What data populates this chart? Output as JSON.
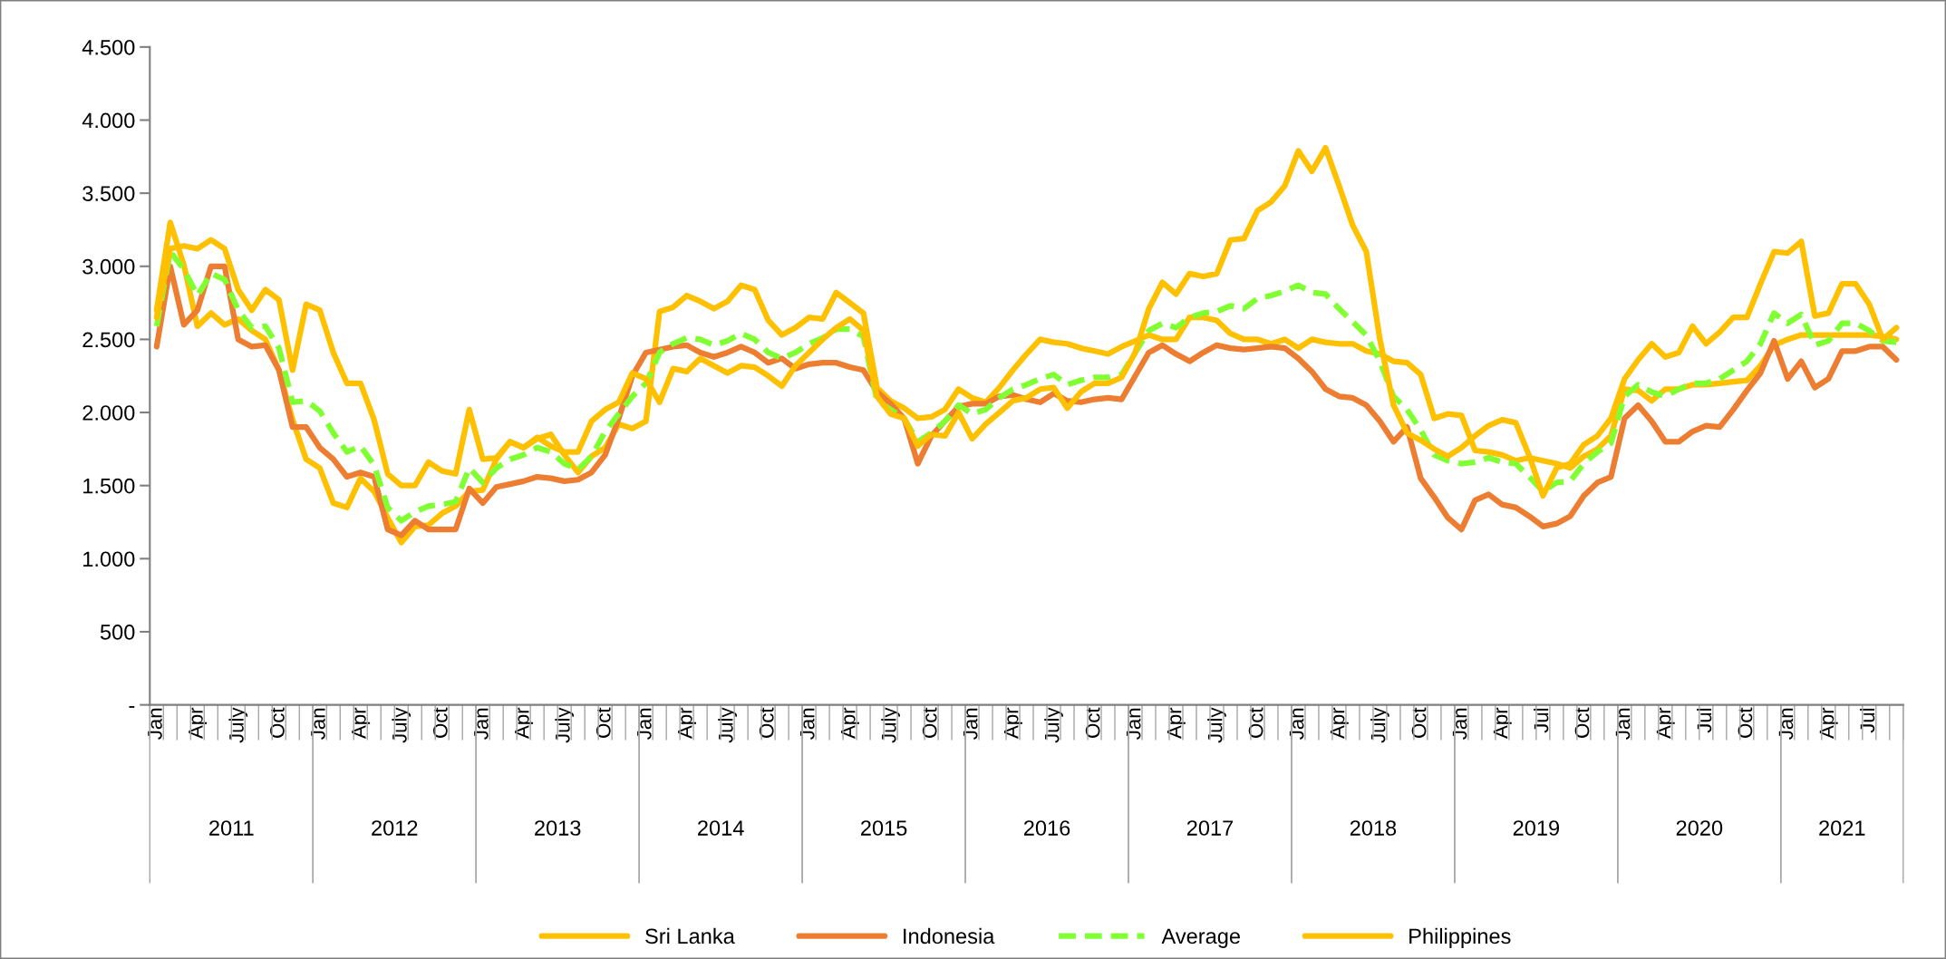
{
  "chart_data": {
    "type": "line",
    "categories": [
      "Jan",
      null,
      null,
      "Apr",
      null,
      null,
      "July",
      null,
      null,
      "Oct",
      null,
      null,
      "Jan",
      null,
      null,
      "Apr",
      null,
      null,
      "July",
      null,
      null,
      "Oct",
      null,
      null,
      "Jan",
      null,
      null,
      "Apr",
      null,
      null,
      "July",
      null,
      null,
      "Oct",
      null,
      null,
      "Jan",
      null,
      null,
      "Apr",
      null,
      null,
      "July",
      null,
      null,
      "Oct",
      null,
      null,
      "Jan",
      null,
      null,
      "Apr",
      null,
      null,
      "July",
      null,
      null,
      "Oct",
      null,
      null,
      "Jan",
      null,
      null,
      "Apr",
      null,
      null,
      "July",
      null,
      null,
      "Oct",
      null,
      null,
      "Jan",
      null,
      null,
      "Apr",
      null,
      null,
      "July",
      null,
      null,
      "Oct",
      null,
      null,
      "Jan",
      null,
      null,
      "Apr",
      null,
      null,
      "July",
      null,
      null,
      "Oct",
      null,
      null,
      "Jan",
      null,
      null,
      "Apr",
      null,
      null,
      "Jul",
      null,
      null,
      "Oct",
      null,
      null,
      "Jan",
      null,
      null,
      "Apr",
      null,
      null,
      "Jul",
      null,
      null,
      "Oct",
      null,
      null,
      "Jan",
      null,
      null,
      "Apr",
      null,
      null,
      "Jul",
      null,
      null
    ],
    "series": [
      {
        "name": "Sri Lanka",
        "color": "#ffc000",
        "line_style": "solid",
        "values": [
          2700,
          3300,
          3010,
          2590,
          2680,
          2600,
          2640,
          2560,
          2500,
          2290,
          1950,
          1680,
          1620,
          1380,
          1350,
          1550,
          1460,
          1280,
          1110,
          1220,
          1230,
          1310,
          1360,
          1460,
          1470,
          1680,
          1800,
          1760,
          1820,
          1850,
          1710,
          1590,
          1700,
          1760,
          1920,
          1890,
          1940,
          2690,
          2720,
          2800,
          2760,
          2710,
          2760,
          2870,
          2840,
          2630,
          2530,
          2580,
          2650,
          2640,
          2820,
          2750,
          2680,
          2170,
          2080,
          2030,
          1960,
          1970,
          2020,
          2160,
          2100,
          2070,
          2170,
          2290,
          2400,
          2500,
          2480,
          2470,
          2440,
          2420,
          2400,
          2450,
          2490,
          2530,
          2500,
          2500,
          2650,
          2650,
          2630,
          2540,
          2500,
          2500,
          2470,
          2500,
          2440,
          2500,
          2480,
          2470,
          2470,
          2420,
          2400,
          2350,
          2340,
          2260,
          1960,
          1990,
          1980,
          1740,
          1730,
          1710,
          1670,
          1690,
          1670,
          1650,
          1620,
          1700,
          1750,
          1840,
          2160,
          2150,
          2080,
          2160,
          2160,
          2190,
          2190,
          2200,
          2210,
          2220,
          2320,
          2460,
          2500,
          2530,
          2530,
          2530,
          2530,
          2530,
          2530,
          2520,
          2500
        ]
      },
      {
        "name": "Indonesia",
        "color": "#ed7d31",
        "line_style": "solid",
        "values": [
          2450,
          3000,
          2600,
          2700,
          3000,
          3000,
          2500,
          2450,
          2460,
          2290,
          1900,
          1900,
          1760,
          1680,
          1560,
          1590,
          1560,
          1200,
          1160,
          1260,
          1200,
          1200,
          1200,
          1480,
          1380,
          1490,
          1510,
          1530,
          1560,
          1550,
          1530,
          1540,
          1590,
          1710,
          1960,
          2250,
          2410,
          2430,
          2450,
          2460,
          2410,
          2380,
          2410,
          2450,
          2410,
          2340,
          2370,
          2300,
          2330,
          2340,
          2340,
          2310,
          2290,
          2140,
          2060,
          1960,
          1650,
          1840,
          1940,
          2040,
          2060,
          2060,
          2110,
          2120,
          2090,
          2070,
          2130,
          2080,
          2070,
          2090,
          2100,
          2090,
          2250,
          2410,
          2460,
          2400,
          2350,
          2410,
          2460,
          2440,
          2430,
          2440,
          2450,
          2440,
          2370,
          2280,
          2160,
          2110,
          2100,
          2050,
          1940,
          1800,
          1900,
          1550,
          1420,
          1280,
          1200,
          1400,
          1440,
          1370,
          1350,
          1290,
          1220,
          1240,
          1290,
          1430,
          1520,
          1560,
          1960,
          2050,
          1940,
          1800,
          1800,
          1870,
          1910,
          1900,
          2020,
          2150,
          2270,
          2490,
          2230,
          2350,
          2170,
          2230,
          2420,
          2420,
          2450,
          2450,
          2360
        ]
      },
      {
        "name": "Average",
        "color": "#80ff33",
        "line_style": "dashed",
        "values": [
          2590,
          3100,
          2980,
          2800,
          2950,
          2910,
          2700,
          2580,
          2590,
          2440,
          2070,
          2080,
          2010,
          1860,
          1730,
          1770,
          1640,
          1350,
          1260,
          1320,
          1360,
          1370,
          1390,
          1620,
          1520,
          1620,
          1680,
          1710,
          1760,
          1730,
          1650,
          1610,
          1700,
          1870,
          1990,
          2110,
          2200,
          2410,
          2470,
          2510,
          2500,
          2460,
          2490,
          2540,
          2500,
          2410,
          2370,
          2410,
          2470,
          2510,
          2570,
          2570,
          2520,
          2080,
          2020,
          1960,
          1800,
          1860,
          1940,
          2050,
          1990,
          2020,
          2100,
          2160,
          2190,
          2230,
          2260,
          2190,
          2220,
          2240,
          2240,
          2260,
          2410,
          2560,
          2610,
          2580,
          2650,
          2680,
          2690,
          2730,
          2710,
          2780,
          2800,
          2830,
          2870,
          2820,
          2810,
          2710,
          2620,
          2530,
          2350,
          2110,
          2020,
          1880,
          1710,
          1670,
          1650,
          1660,
          1690,
          1660,
          1650,
          1560,
          1460,
          1520,
          1530,
          1650,
          1730,
          1790,
          2110,
          2190,
          2140,
          2110,
          2160,
          2200,
          2200,
          2230,
          2290,
          2350,
          2470,
          2680,
          2610,
          2670,
          2460,
          2490,
          2610,
          2610,
          2560,
          2490,
          2480
        ]
      },
      {
        "name": "Philippines",
        "color": "#ffc000",
        "line_style": "solid",
        "values": [
          2650,
          3120,
          3140,
          3120,
          3180,
          3120,
          2840,
          2700,
          2840,
          2770,
          2290,
          2740,
          2700,
          2410,
          2200,
          2200,
          1950,
          1580,
          1500,
          1500,
          1660,
          1600,
          1580,
          2020,
          1680,
          1690,
          1800,
          1760,
          1830,
          1770,
          1730,
          1730,
          1940,
          2020,
          2070,
          2270,
          2230,
          2070,
          2300,
          2280,
          2370,
          2320,
          2270,
          2320,
          2310,
          2250,
          2180,
          2320,
          2410,
          2500,
          2580,
          2640,
          2560,
          2110,
          1990,
          1960,
          1770,
          1850,
          1840,
          2000,
          1820,
          1920,
          2000,
          2080,
          2100,
          2160,
          2170,
          2030,
          2140,
          2200,
          2200,
          2240,
          2410,
          2710,
          2890,
          2810,
          2950,
          2930,
          2950,
          3180,
          3190,
          3380,
          3440,
          3550,
          3790,
          3650,
          3810,
          3550,
          3280,
          3100,
          2500,
          2050,
          1860,
          1810,
          1750,
          1700,
          1760,
          1840,
          1910,
          1950,
          1930,
          1700,
          1430,
          1620,
          1650,
          1780,
          1840,
          1960,
          2230,
          2360,
          2470,
          2380,
          2410,
          2590,
          2470,
          2550,
          2650,
          2650,
          2880,
          3100,
          3090,
          3170,
          2660,
          2680,
          2880,
          2880,
          2740,
          2500,
          2580
        ]
      }
    ],
    "ylim": [
      0,
      4500
    ],
    "yticks": [
      {
        "value": 0,
        "label": "-"
      },
      500,
      {
        "value": 1000,
        "label": "1.000"
      },
      {
        "value": 1500,
        "label": "1.500"
      },
      {
        "value": 2000,
        "label": "2.000"
      },
      {
        "value": 2500,
        "label": "2.500"
      },
      {
        "value": 3000,
        "label": "3.000"
      },
      {
        "value": 3500,
        "label": "3.500"
      },
      {
        "value": 4000,
        "label": "4.000"
      },
      {
        "value": 4500,
        "label": "4.500"
      }
    ],
    "legend": "bottom",
    "annotations": [
      "2011",
      "2012",
      "2013",
      "2014",
      "2015",
      "2016",
      "2017",
      "2018",
      "2019",
      "2020",
      "2021"
    ]
  }
}
